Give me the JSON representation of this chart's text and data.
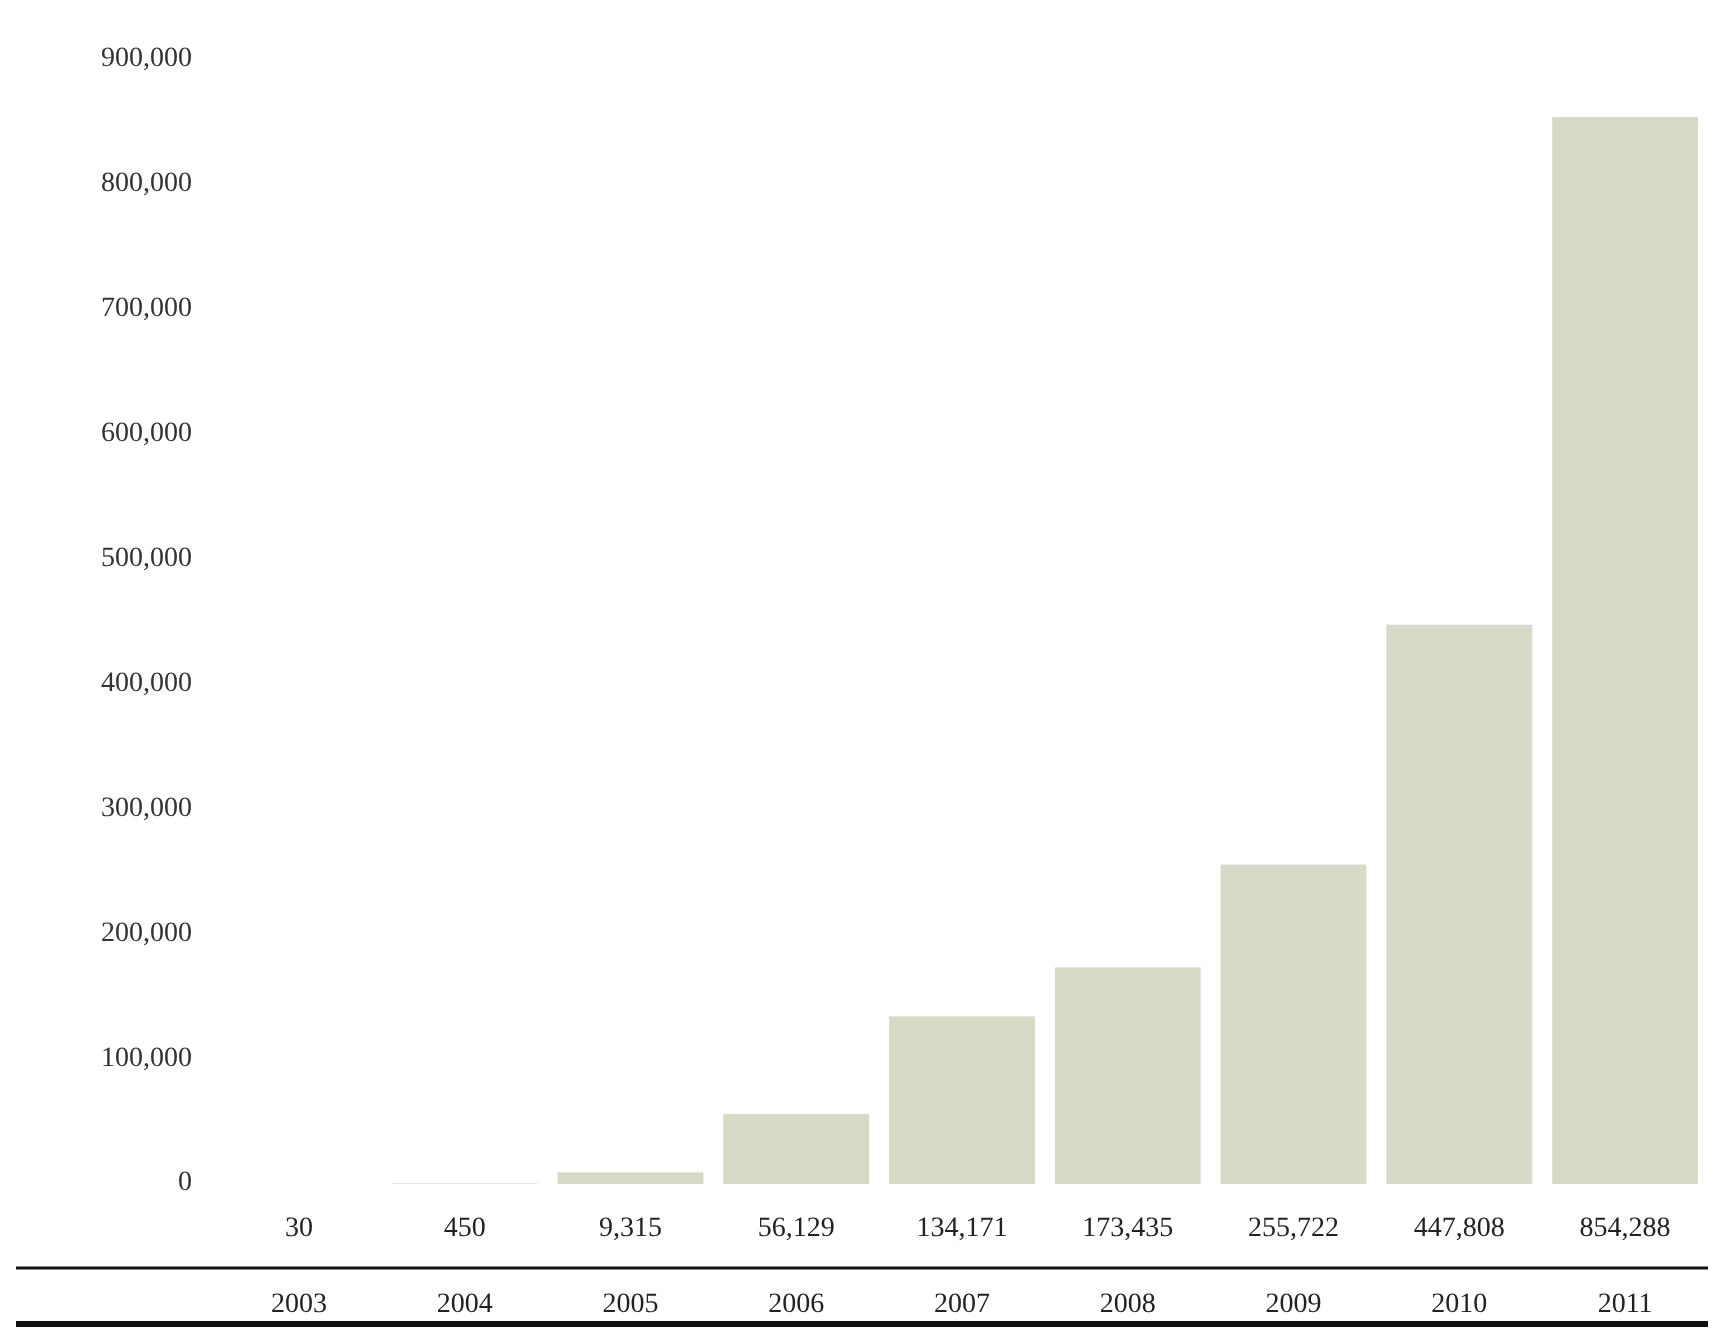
{
  "chart_data": {
    "type": "bar",
    "categories": [
      "2003",
      "2004",
      "2005",
      "2006",
      "2007",
      "2008",
      "2009",
      "2010",
      "2011"
    ],
    "values": [
      30,
      450,
      9315,
      56129,
      134171,
      173435,
      255722,
      447808,
      854288
    ],
    "color": "#d8dac6",
    "ylim": [
      0,
      900000
    ],
    "yticks": [
      {
        "value": 0,
        "label": "0"
      },
      {
        "value": 100000,
        "label": "100,000"
      },
      {
        "value": 200000,
        "label": "200,000"
      },
      {
        "value": 300000,
        "label": "300,000"
      },
      {
        "value": 400000,
        "label": "400,000"
      },
      {
        "value": 500000,
        "label": "500,000"
      },
      {
        "value": 600000,
        "label": "600,000"
      },
      {
        "value": 700000,
        "label": "700,000"
      },
      {
        "value": 800000,
        "label": "800,000"
      },
      {
        "value": 900000,
        "label": "900,000"
      }
    ],
    "value_labels": [
      "30",
      "450",
      "9,315",
      "56,129",
      "134,171",
      "173,435",
      "255,722",
      "447,808",
      "854,288"
    ]
  }
}
